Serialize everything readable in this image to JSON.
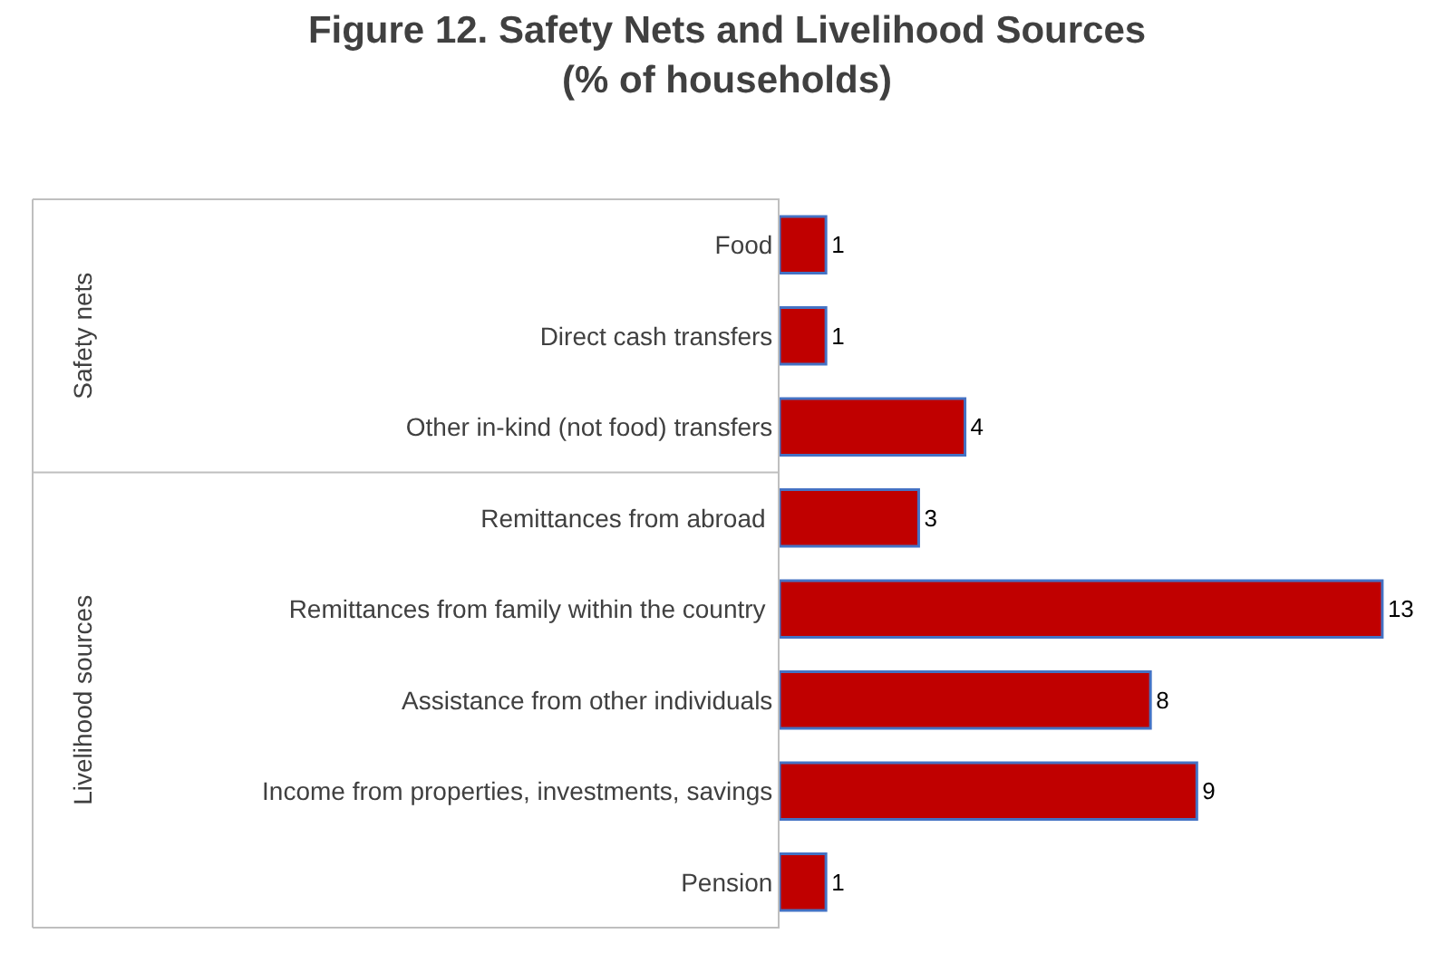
{
  "chart_data": {
    "type": "bar",
    "orientation": "horizontal",
    "title": "Figure 12. Safety Nets and Livelihood Sources\n(% of households)",
    "categories": [
      "Food",
      "Direct cash transfers",
      "Other in-kind (not food) transfers",
      "Remittances from abroad ",
      "Remittances from family within the country ",
      "Assistance from other individuals",
      "Income from properties, investments, savings",
      "Pension"
    ],
    "values": [
      1,
      1,
      4,
      3,
      13,
      8,
      9,
      1
    ],
    "color": "#c00000",
    "data_labels": true,
    "xlim": [
      0,
      13.1
    ],
    "tick_labels": "y",
    "annotations": [
      "Safety nets",
      "Livelihood sources"
    ]
  }
}
